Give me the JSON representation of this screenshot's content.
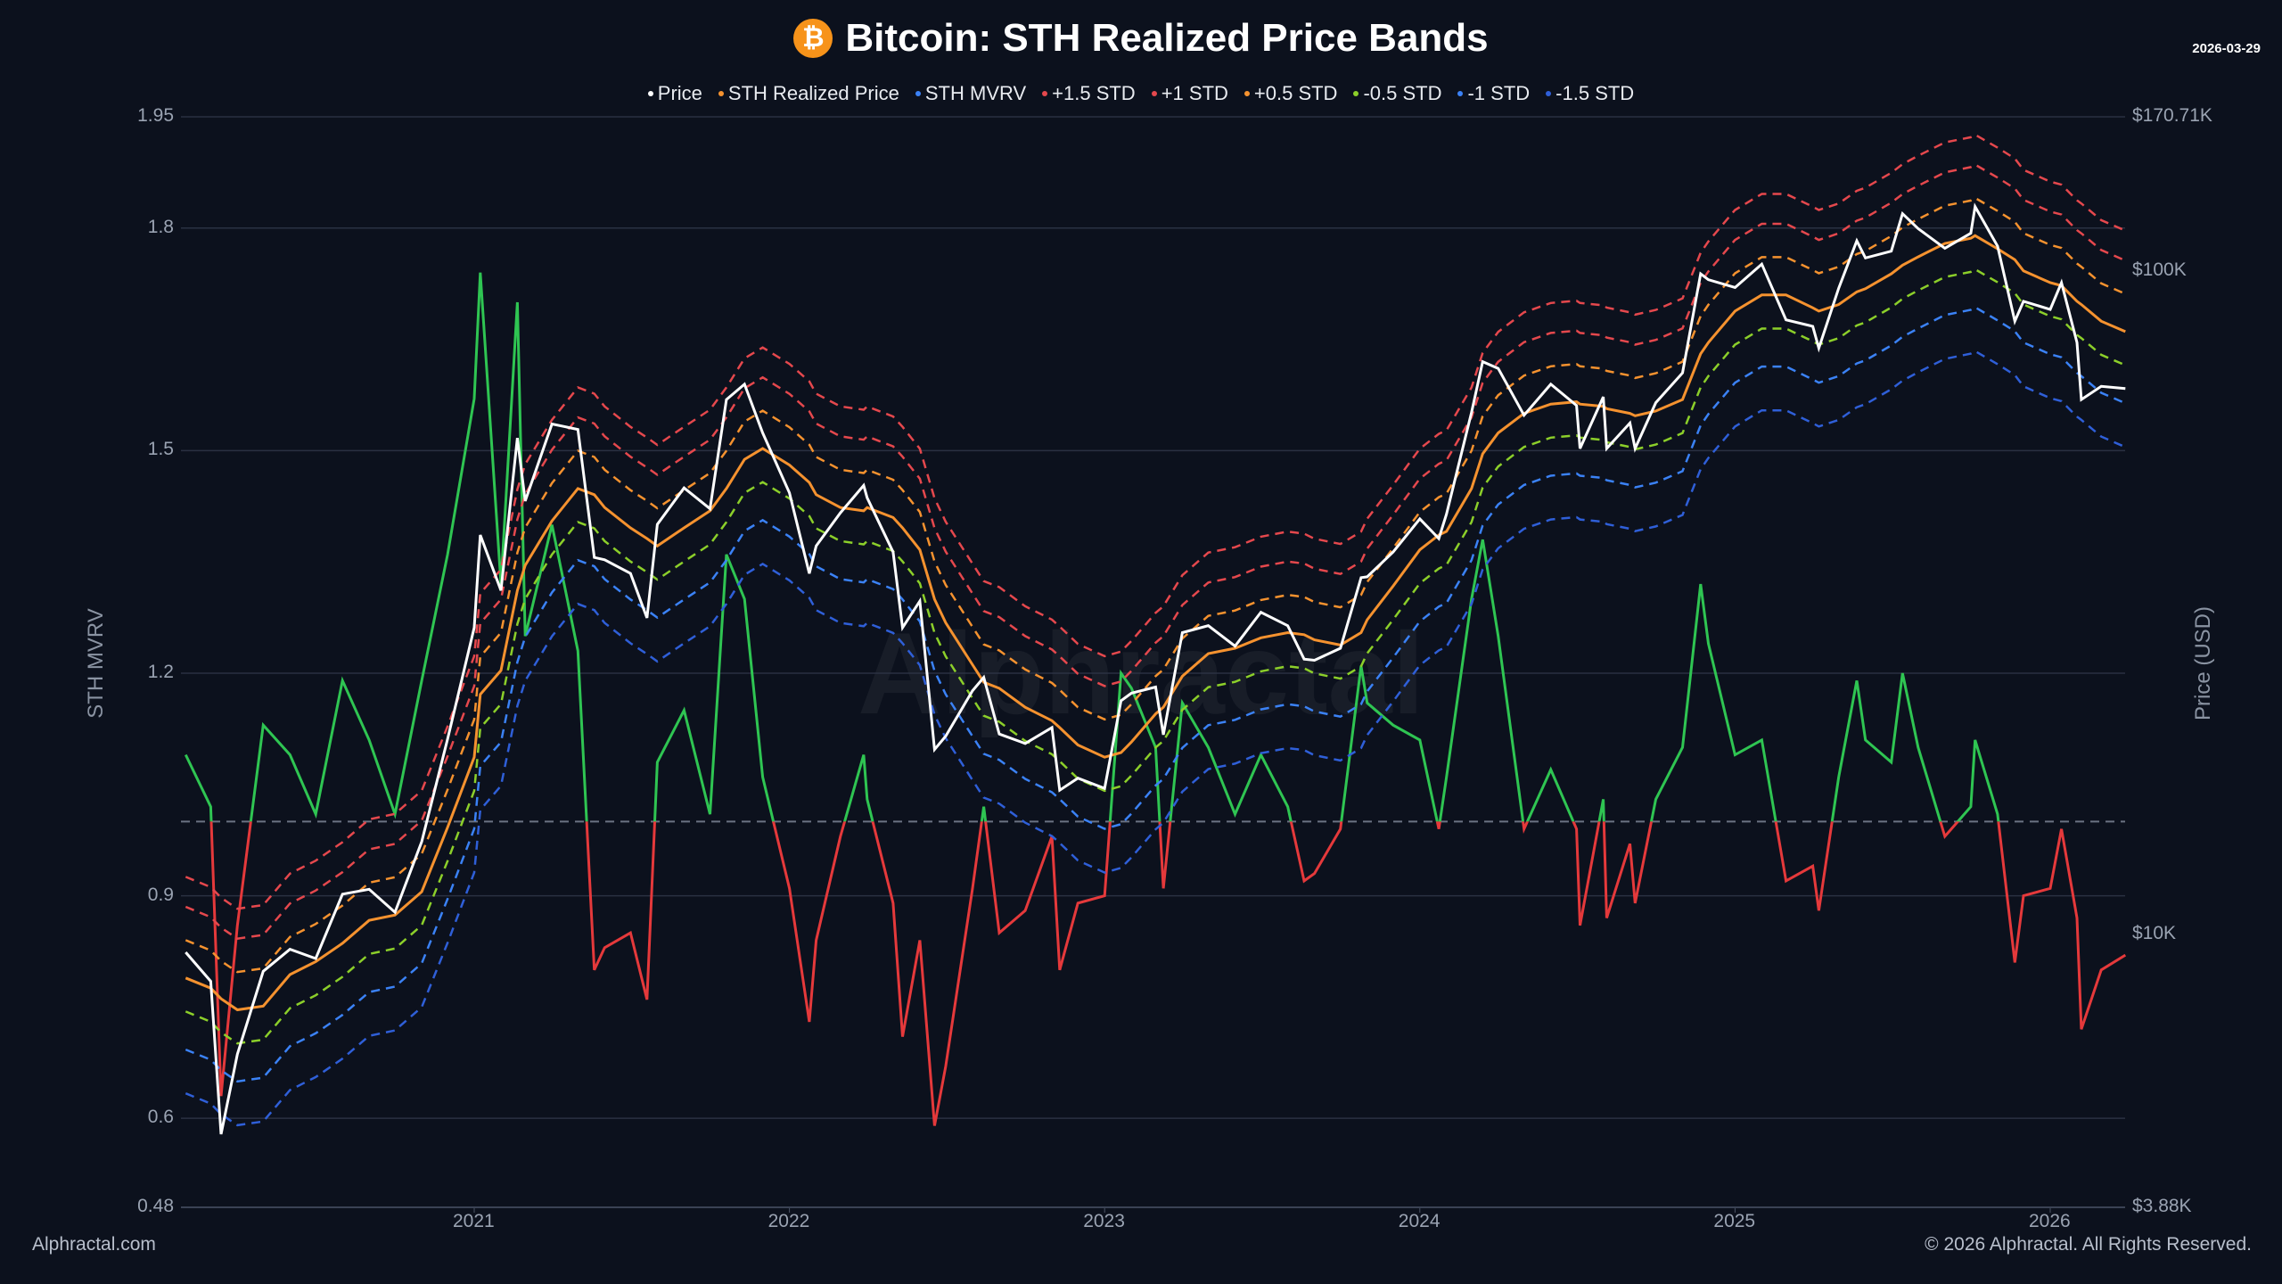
{
  "header": {
    "title": "Bitcoin: STH Realized Price Bands",
    "date": "2026-03-29",
    "logo_icon": "bitcoin-icon"
  },
  "footer": {
    "left": "Alphractal.com",
    "right": "© 2026 Alphractal. All Rights Reserved.",
    "watermark": "Alphractal"
  },
  "chart_data": {
    "type": "line",
    "title": "Bitcoin: STH Realized Price Bands",
    "ylabel_left": "STH MVRV",
    "ylabel_right": "Price (USD)",
    "ylim_left": [
      0.48,
      1.95
    ],
    "ylim_right": [
      3880,
      170710
    ],
    "right_scale": "log",
    "left_ticks": [
      "1.95",
      "1.8",
      "1.5",
      "1.2",
      "0.9",
      "0.6",
      "0.48"
    ],
    "left_tick_values": [
      1.95,
      1.8,
      1.5,
      1.2,
      0.9,
      0.6,
      0.48
    ],
    "right_ticks": [
      "$170.71K",
      "$100K",
      "$10K",
      "$3.88K"
    ],
    "right_tick_values": [
      170710,
      100000,
      10000,
      3880
    ],
    "x_ticks": [
      "2021",
      "2022",
      "2023",
      "2024",
      "2025",
      "2026"
    ],
    "grid": true,
    "reference_line": 1.0,
    "legend_position": "top",
    "legend": [
      {
        "name": "Price",
        "color": "#ffffff"
      },
      {
        "name": "STH Realized Price",
        "color": "#f5922f"
      },
      {
        "name": "STH MVRV",
        "color": "#3b82f6"
      },
      {
        "name": "+1.5 STD",
        "color": "#e5484d"
      },
      {
        "name": "+1 STD",
        "color": "#e5484d"
      },
      {
        "name": "+0.5 STD",
        "color": "#f5922f"
      },
      {
        "name": "-0.5 STD",
        "color": "#8ccf2a"
      },
      {
        "name": "-1 STD",
        "color": "#3b82f6"
      },
      {
        "name": "-1.5 STD",
        "color": "#2f5fd8"
      }
    ],
    "mvrv_colors": {
      "above_1": "#2fc552",
      "below_1": "#e5393b"
    },
    "bands": [
      {
        "name": "+1.5 STD",
        "multiplier": 1.42,
        "color": "#e5484d"
      },
      {
        "name": "+1 STD",
        "multiplier": 1.28,
        "color": "#e5484d"
      },
      {
        "name": "+0.5 STD",
        "multiplier": 1.14,
        "color": "#f5922f"
      },
      {
        "name": "-0.5 STD",
        "multiplier": 0.89,
        "color": "#8ccf2a"
      },
      {
        "name": "-1 STD",
        "multiplier": 0.78,
        "color": "#3b82f6"
      },
      {
        "name": "-1.5 STD",
        "multiplier": 0.67,
        "color": "#2f5fd8"
      }
    ],
    "dates": [
      "2020-02-01",
      "2020-03-01",
      "2020-03-13",
      "2020-04-01",
      "2020-05-01",
      "2020-06-01",
      "2020-07-01",
      "2020-08-01",
      "2020-09-01",
      "2020-10-01",
      "2020-11-01",
      "2020-12-01",
      "2021-01-01",
      "2021-01-08",
      "2021-02-01",
      "2021-02-20",
      "2021-03-01",
      "2021-04-01",
      "2021-05-01",
      "2021-05-20",
      "2021-06-01",
      "2021-07-01",
      "2021-07-20",
      "2021-08-01",
      "2021-09-01",
      "2021-10-01",
      "2021-10-20",
      "2021-11-10",
      "2021-12-01",
      "2022-01-01",
      "2022-01-24",
      "2022-02-01",
      "2022-03-01",
      "2022-03-28",
      "2022-04-01",
      "2022-05-01",
      "2022-05-12",
      "2022-06-01",
      "2022-06-18",
      "2022-07-01",
      "2022-08-01",
      "2022-08-14",
      "2022-09-01",
      "2022-10-01",
      "2022-11-01",
      "2022-11-10",
      "2022-12-01",
      "2023-01-01",
      "2023-01-20",
      "2023-02-01",
      "2023-03-01",
      "2023-03-10",
      "2023-04-01",
      "2023-05-01",
      "2023-06-01",
      "2023-07-01",
      "2023-08-01",
      "2023-08-20",
      "2023-09-01",
      "2023-10-01",
      "2023-10-25",
      "2023-11-01",
      "2023-12-01",
      "2024-01-01",
      "2024-01-23",
      "2024-02-01",
      "2024-03-01",
      "2024-03-14",
      "2024-04-01",
      "2024-05-01",
      "2024-06-01",
      "2024-07-01",
      "2024-07-05",
      "2024-08-01",
      "2024-08-05",
      "2024-09-01",
      "2024-09-07",
      "2024-10-01",
      "2024-11-01",
      "2024-11-22",
      "2024-12-01",
      "2025-01-01",
      "2025-02-01",
      "2025-03-01",
      "2025-04-01",
      "2025-04-08",
      "2025-05-01",
      "2025-05-22",
      "2025-06-01",
      "2025-07-01",
      "2025-07-14",
      "2025-08-01",
      "2025-09-01",
      "2025-10-01",
      "2025-10-06",
      "2025-11-01",
      "2025-11-21",
      "2025-12-01",
      "2026-01-01",
      "2026-01-14",
      "2026-02-01",
      "2026-02-06",
      "2026-03-01",
      "2026-03-29"
    ],
    "price": [
      9400,
      8500,
      5000,
      6600,
      8800,
      9500,
      9200,
      11500,
      11700,
      10800,
      13800,
      19700,
      29000,
      40000,
      33000,
      56000,
      45000,
      58800,
      57700,
      37000,
      36700,
      35000,
      30000,
      41500,
      47100,
      43800,
      64000,
      67500,
      57000,
      46300,
      35000,
      38500,
      43200,
      47500,
      45500,
      37700,
      29000,
      31800,
      19000,
      19900,
      23300,
      24400,
      20050,
      19400,
      20500,
      16500,
      17200,
      16600,
      22500,
      23100,
      23600,
      20000,
      28500,
      29200,
      27200,
      30600,
      29200,
      26000,
      25900,
      27000,
      34500,
      34600,
      37700,
      42300,
      39500,
      43000,
      61200,
      73000,
      71300,
      60600,
      67500,
      62700,
      54000,
      64600,
      54000,
      59000,
      54000,
      63300,
      70200,
      99000,
      97000,
      94400,
      102400,
      84400,
      82500,
      76500,
      94200,
      111000,
      104600,
      107100,
      122000,
      115800,
      108200,
      114000,
      125000,
      109000,
      84000,
      90000,
      87500,
      96000,
      78000,
      64000,
      67000,
      66500
    ],
    "sth_realized_price": [
      8600,
      8300,
      8000,
      7700,
      7800,
      8700,
      9100,
      9700,
      10500,
      10700,
      11600,
      14500,
      18500,
      23000,
      25000,
      33000,
      36000,
      42000,
      47000,
      46000,
      44000,
      41000,
      39500,
      38500,
      41000,
      43500,
      47000,
      52000,
      54000,
      51000,
      48000,
      46000,
      44000,
      43500,
      44000,
      42500,
      41000,
      38000,
      32000,
      29500,
      25500,
      24000,
      23500,
      22000,
      21000,
      20500,
      19300,
      18500,
      18800,
      19500,
      21500,
      22000,
      24500,
      26500,
      27000,
      28000,
      28500,
      28300,
      27800,
      27300,
      28500,
      29800,
      33500,
      38000,
      40000,
      40500,
      47000,
      53000,
      57000,
      61000,
      63000,
      63500,
      63000,
      62500,
      62000,
      61000,
      60500,
      61500,
      64000,
      75000,
      78000,
      87000,
      92000,
      92000,
      88000,
      87000,
      89000,
      93000,
      94000,
      99000,
      102000,
      105000,
      110000,
      112000,
      113000,
      108000,
      104000,
      100000,
      96000,
      95000,
      90000,
      89000,
      84000,
      81000
    ],
    "sth_mvrv": [
      1.09,
      1.02,
      0.63,
      0.86,
      1.13,
      1.09,
      1.01,
      1.19,
      1.11,
      1.01,
      1.19,
      1.36,
      1.57,
      1.74,
      1.32,
      1.7,
      1.25,
      1.4,
      1.23,
      0.8,
      0.83,
      0.85,
      0.76,
      1.08,
      1.15,
      1.01,
      1.36,
      1.3,
      1.06,
      0.91,
      0.73,
      0.84,
      0.98,
      1.09,
      1.03,
      0.89,
      0.71,
      0.84,
      0.59,
      0.67,
      0.91,
      1.02,
      0.85,
      0.88,
      0.98,
      0.8,
      0.89,
      0.9,
      1.2,
      1.18,
      1.1,
      0.91,
      1.16,
      1.1,
      1.01,
      1.09,
      1.02,
      0.92,
      0.93,
      0.99,
      1.21,
      1.16,
      1.13,
      1.11,
      0.99,
      1.06,
      1.3,
      1.38,
      1.25,
      0.99,
      1.07,
      0.99,
      0.86,
      1.03,
      0.87,
      0.97,
      0.89,
      1.03,
      1.1,
      1.32,
      1.24,
      1.09,
      1.11,
      0.92,
      0.94,
      0.88,
      1.06,
      1.19,
      1.11,
      1.08,
      1.2,
      1.1,
      0.98,
      1.02,
      1.11,
      1.01,
      0.81,
      0.9,
      0.91,
      0.99,
      0.87,
      0.72,
      0.8,
      0.82
    ]
  }
}
